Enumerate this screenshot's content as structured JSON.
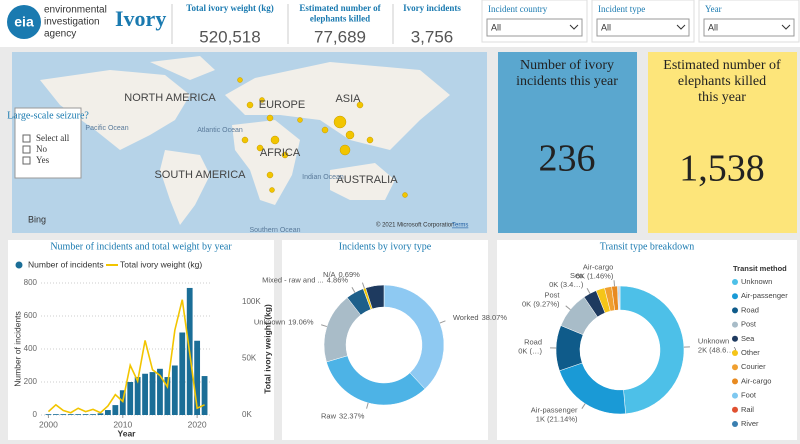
{
  "header": {
    "logo": "eia",
    "org": [
      "environmental",
      "investigation",
      "agency"
    ],
    "title": "Ivory"
  },
  "kpis": [
    {
      "label": "Total ivory weight (kg)",
      "value": "520,518"
    },
    {
      "label": "Estimated number of elephants killed",
      "value": "77,689"
    },
    {
      "label": "Ivory incidents",
      "value": "3,756"
    }
  ],
  "filters": [
    {
      "label": "Incident country",
      "value": "All"
    },
    {
      "label": "Incident type",
      "value": "All"
    },
    {
      "label": "Year",
      "value": "All"
    }
  ],
  "map": {
    "labels": [
      "NORTH AMERICA",
      "EUROPE",
      "ASIA",
      "AFRICA",
      "SOUTH AMERICA",
      "AUSTRALIA",
      "Pacific Ocean",
      "Atlantic Ocean",
      "Indian Ocean",
      "Southern Ocean"
    ],
    "attribution": "© 2021 Microsoft Corporation",
    "terms": "Terms",
    "brand": "Bing"
  },
  "seizure_slicer": {
    "title": "Large-scale seizure?",
    "options": [
      "Select all",
      "No",
      "Yes"
    ]
  },
  "cards": [
    {
      "title": "Number of ivory incidents this year",
      "value": "236"
    },
    {
      "title": "Estimated number of elephants killed this year",
      "value": "1,538"
    }
  ],
  "chart_data": [
    {
      "type": "combo",
      "title": "Number of incidents and total weight by year",
      "x_label": "Year",
      "y_label": "Number of incidents",
      "y2_label": "Total ivory weight (kg)",
      "x": [
        2000,
        2001,
        2002,
        2003,
        2004,
        2005,
        2006,
        2007,
        2008,
        2009,
        2010,
        2011,
        2012,
        2013,
        2014,
        2015,
        2016,
        2017,
        2018,
        2019,
        2020,
        2021
      ],
      "series": [
        {
          "name": "Number of incidents",
          "color": "#1b6e97",
          "type": "bar",
          "axis": "y",
          "values": [
            5,
            5,
            5,
            5,
            5,
            5,
            5,
            10,
            30,
            60,
            150,
            200,
            230,
            250,
            260,
            280,
            230,
            300,
            500,
            770,
            450,
            236
          ]
        },
        {
          "name": "Total ivory weight (kg)",
          "color": "#f2c500",
          "type": "line",
          "axis": "y2",
          "values": [
            3000,
            9000,
            4000,
            2000,
            6000,
            3000,
            5000,
            2000,
            8000,
            18000,
            12000,
            44000,
            30000,
            66000,
            40000,
            35000,
            25000,
            75000,
            102000,
            55000,
            6000,
            9000
          ]
        }
      ],
      "xlim": [
        1999,
        2022
      ],
      "xticks": [
        2000,
        2010,
        2020
      ],
      "ylim": [
        0,
        800
      ],
      "yticks": [
        0,
        200,
        400,
        600,
        800
      ],
      "y2lim": [
        0,
        116800
      ],
      "y2ticks": [
        {
          "value": 0,
          "label": "0K"
        },
        {
          "value": 50000,
          "label": "50K"
        },
        {
          "value": 100000,
          "label": "100K"
        }
      ],
      "grid": true
    },
    {
      "type": "donut",
      "title": "Incidents by ivory type",
      "categories": [
        "Worked",
        "Raw",
        "Unknown",
        "Mixed - raw and ...",
        "N/A",
        null
      ],
      "values": [
        38.07,
        32.37,
        19.06,
        4.86,
        0.69,
        4.95
      ],
      "value_labels": [
        "38.07%",
        "32.37%",
        "19.06%",
        "4.86%",
        "0.69%",
        null
      ],
      "colors": [
        "#8ec9f2",
        "#4db3e6",
        "#a9bcc8",
        "#1e5f8a",
        "#f2c500",
        "#1e3a5f"
      ]
    },
    {
      "type": "donut",
      "title": "Transit type breakdown",
      "legend_title": "Transit method",
      "categories": [
        "Unknown",
        "Air-passenger",
        "Road",
        "Post",
        "Sea",
        "Other",
        "Courier",
        "Air-cargo",
        "Foot",
        "Rail",
        "River"
      ],
      "values": [
        48.6,
        21.14,
        11.5,
        9.27,
        3.4,
        2.2,
        1.8,
        1.46,
        0.3,
        0.2,
        0.13
      ],
      "value_labels": [
        "2K (48.6…)",
        "1K (21.14%)",
        "0K (…)",
        "0K (9.27%)",
        "0K (3.4…)",
        null,
        null,
        "0K (1.46%)",
        null,
        null,
        null
      ],
      "colors": [
        "#4dc0e8",
        "#1a9ad6",
        "#0f5b8a",
        "#a8bcc8",
        "#1e3a5f",
        "#f5c518",
        "#f0a030",
        "#e88a20",
        "#7ec8f0",
        "#e05030",
        "#3a7fb0"
      ],
      "legend": "right"
    }
  ]
}
